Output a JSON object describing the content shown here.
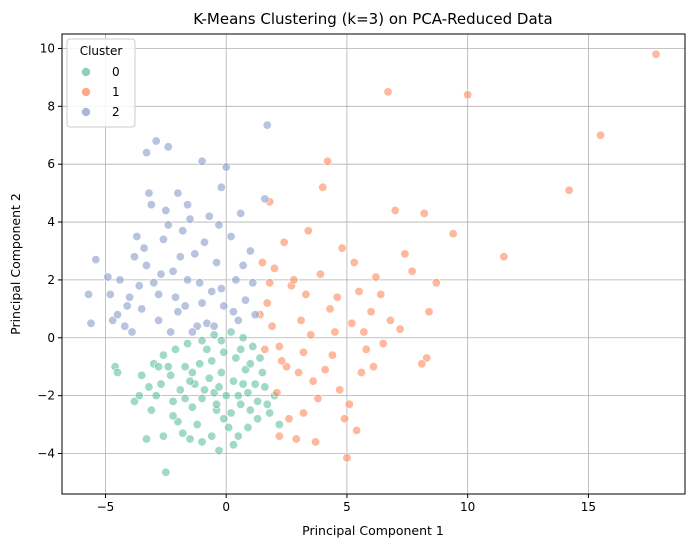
{
  "chart_data": {
    "type": "scatter",
    "title": "K-Means Clustering (k=3) on PCA-Reduced Data",
    "xlabel": "Principal Component 1",
    "ylabel": "Principal Component 2",
    "xlim": [
      -6.8,
      19.0
    ],
    "ylim": [
      -5.4,
      10.5
    ],
    "xticks": [
      -5,
      0,
      5,
      10,
      15
    ],
    "yticks": [
      -4,
      -2,
      0,
      2,
      4,
      6,
      8,
      10
    ],
    "grid": true,
    "legend": {
      "title": "Cluster",
      "placement": "top-left"
    },
    "series": [
      {
        "name": "0",
        "color": "#66c2a5",
        "points": [
          [
            -4.6,
            -1.0
          ],
          [
            -4.5,
            -1.2
          ],
          [
            -3.8,
            -2.2
          ],
          [
            -3.3,
            -3.5
          ],
          [
            -2.5,
            -4.65
          ],
          [
            -2.9,
            -2.0
          ],
          [
            -2.6,
            -3.4
          ],
          [
            -2.0,
            -2.9
          ],
          [
            -1.8,
            -3.3
          ],
          [
            -1.5,
            -3.5
          ],
          [
            -1.0,
            -3.6
          ],
          [
            -0.6,
            -3.4
          ],
          [
            -0.3,
            -3.9
          ],
          [
            0.3,
            -3.7
          ],
          [
            0.5,
            -3.4
          ],
          [
            0.9,
            -3.1
          ],
          [
            1.3,
            -2.8
          ],
          [
            1.7,
            -2.3
          ],
          [
            2.0,
            -2.0
          ],
          [
            2.2,
            -3.0
          ],
          [
            1.8,
            -2.6
          ],
          [
            0.6,
            -2.3
          ],
          [
            -0.4,
            -2.5
          ],
          [
            -1.4,
            -2.4
          ],
          [
            -2.2,
            -2.2
          ],
          [
            -3.2,
            -1.7
          ],
          [
            -3.5,
            -1.3
          ],
          [
            -3.0,
            -0.9
          ],
          [
            -2.6,
            -0.6
          ],
          [
            -2.1,
            -0.4
          ],
          [
            -1.6,
            -0.2
          ],
          [
            -1.0,
            -0.1
          ],
          [
            -0.5,
            0.1
          ],
          [
            0.2,
            0.2
          ],
          [
            0.7,
            0.0
          ],
          [
            1.1,
            -0.3
          ],
          [
            1.4,
            -0.7
          ],
          [
            1.5,
            -1.2
          ],
          [
            1.2,
            -1.6
          ],
          [
            0.8,
            -1.1
          ],
          [
            0.4,
            -0.7
          ],
          [
            -0.1,
            -0.5
          ],
          [
            -0.6,
            -0.8
          ],
          [
            -1.1,
            -0.9
          ],
          [
            -1.7,
            -1.0
          ],
          [
            -2.3,
            -1.3
          ],
          [
            -2.7,
            -1.6
          ],
          [
            -1.9,
            -1.8
          ],
          [
            -1.3,
            -1.6
          ],
          [
            -0.7,
            -1.4
          ],
          [
            -0.2,
            -1.2
          ],
          [
            0.3,
            -1.5
          ],
          [
            0.9,
            -1.9
          ],
          [
            0.5,
            -2.0
          ],
          [
            0.0,
            -2.0
          ],
          [
            -0.5,
            -1.9
          ],
          [
            -1.0,
            -2.1
          ],
          [
            -1.5,
            -1.5
          ],
          [
            -0.8,
            -0.4
          ],
          [
            -0.2,
            -0.1
          ],
          [
            0.6,
            -0.4
          ],
          [
            1.0,
            -0.9
          ],
          [
            -2.8,
            -1.0
          ],
          [
            -3.1,
            -2.5
          ],
          [
            -2.2,
            -2.7
          ],
          [
            -1.2,
            -3.0
          ],
          [
            -0.1,
            -2.8
          ],
          [
            1.0,
            -2.5
          ],
          [
            1.6,
            -1.7
          ],
          [
            0.1,
            -3.1
          ],
          [
            -1.7,
            -2.1
          ],
          [
            -3.6,
            -2.0
          ],
          [
            -2.4,
            -1.0
          ],
          [
            -0.3,
            -1.7
          ],
          [
            0.7,
            -1.6
          ],
          [
            -1.4,
            -1.2
          ],
          [
            -0.9,
            -1.8
          ],
          [
            -0.4,
            -2.3
          ],
          [
            0.2,
            -2.6
          ],
          [
            1.3,
            -2.2
          ]
        ]
      },
      {
        "name": "1",
        "color": "#fc8d62",
        "points": [
          [
            17.8,
            9.8
          ],
          [
            15.5,
            7.0
          ],
          [
            14.2,
            5.1
          ],
          [
            11.5,
            2.8
          ],
          [
            10.0,
            8.4
          ],
          [
            9.4,
            3.6
          ],
          [
            8.7,
            1.9
          ],
          [
            8.4,
            0.9
          ],
          [
            8.2,
            4.3
          ],
          [
            8.3,
            -0.7
          ],
          [
            8.1,
            -0.9
          ],
          [
            7.7,
            2.3
          ],
          [
            7.4,
            2.9
          ],
          [
            7.2,
            0.3
          ],
          [
            7.0,
            4.4
          ],
          [
            6.7,
            8.5
          ],
          [
            6.4,
            1.5
          ],
          [
            6.2,
            2.1
          ],
          [
            6.0,
            0.9
          ],
          [
            5.7,
            0.2
          ],
          [
            5.6,
            -1.2
          ],
          [
            5.4,
            -3.2
          ],
          [
            5.1,
            -2.3
          ],
          [
            5.0,
            -4.15
          ],
          [
            4.8,
            3.1
          ],
          [
            4.6,
            1.4
          ],
          [
            4.4,
            -0.6
          ],
          [
            4.2,
            6.1
          ],
          [
            4.0,
            5.2
          ],
          [
            3.9,
            2.2
          ],
          [
            3.6,
            -1.5
          ],
          [
            3.4,
            3.7
          ],
          [
            3.2,
            -2.6
          ],
          [
            3.1,
            0.6
          ],
          [
            2.9,
            -3.5
          ],
          [
            2.7,
            1.8
          ],
          [
            2.5,
            -1.0
          ],
          [
            2.4,
            3.3
          ],
          [
            2.2,
            -0.3
          ],
          [
            2.0,
            2.4
          ],
          [
            1.9,
            0.4
          ],
          [
            1.7,
            1.2
          ],
          [
            1.6,
            -0.4
          ],
          [
            1.5,
            2.6
          ],
          [
            1.4,
            0.8
          ],
          [
            2.1,
            -1.9
          ],
          [
            2.6,
            -2.8
          ],
          [
            3.0,
            -1.2
          ],
          [
            3.5,
            0.1
          ],
          [
            3.8,
            -2.1
          ],
          [
            4.1,
            -1.1
          ],
          [
            4.3,
            1.0
          ],
          [
            4.7,
            -1.8
          ],
          [
            5.2,
            0.5
          ],
          [
            5.5,
            1.6
          ],
          [
            5.8,
            -0.4
          ],
          [
            6.5,
            -0.2
          ],
          [
            6.8,
            0.6
          ],
          [
            3.3,
            1.5
          ],
          [
            2.8,
            2.0
          ],
          [
            2.3,
            -0.8
          ],
          [
            1.8,
            1.9
          ],
          [
            3.7,
            -3.6
          ],
          [
            4.9,
            -2.8
          ],
          [
            5.3,
            2.6
          ],
          [
            4.5,
            0.2
          ],
          [
            2.2,
            -3.4
          ],
          [
            1.8,
            4.7
          ],
          [
            3.2,
            -0.5
          ],
          [
            6.1,
            -1.0
          ]
        ]
      },
      {
        "name": "2",
        "color": "#8da0cb",
        "points": [
          [
            -5.7,
            1.5
          ],
          [
            -5.6,
            0.5
          ],
          [
            -5.4,
            2.7
          ],
          [
            -4.9,
            2.1
          ],
          [
            -4.8,
            1.5
          ],
          [
            -4.7,
            0.6
          ],
          [
            -4.4,
            2.0
          ],
          [
            -4.2,
            0.4
          ],
          [
            -4.0,
            1.4
          ],
          [
            -3.8,
            2.8
          ],
          [
            -3.7,
            3.5
          ],
          [
            -3.5,
            1.0
          ],
          [
            -3.3,
            6.4
          ],
          [
            -3.2,
            5.0
          ],
          [
            -3.1,
            4.6
          ],
          [
            -3.0,
            1.9
          ],
          [
            -2.9,
            6.8
          ],
          [
            -2.8,
            0.6
          ],
          [
            -2.6,
            3.4
          ],
          [
            -2.5,
            4.4
          ],
          [
            -2.4,
            6.6
          ],
          [
            -2.2,
            2.3
          ],
          [
            -2.0,
            5.0
          ],
          [
            -1.8,
            3.7
          ],
          [
            -1.7,
            1.1
          ],
          [
            -1.5,
            4.1
          ],
          [
            -1.3,
            2.9
          ],
          [
            -1.2,
            0.4
          ],
          [
            -1.0,
            6.1
          ],
          [
            -0.9,
            3.3
          ],
          [
            -0.7,
            4.2
          ],
          [
            -0.6,
            1.6
          ],
          [
            -0.4,
            2.6
          ],
          [
            -0.2,
            5.2
          ],
          [
            0.0,
            5.9
          ],
          [
            0.2,
            3.5
          ],
          [
            0.4,
            2.0
          ],
          [
            0.6,
            4.3
          ],
          [
            0.8,
            1.3
          ],
          [
            1.0,
            3.0
          ],
          [
            1.2,
            0.8
          ],
          [
            1.6,
            4.8
          ],
          [
            1.7,
            7.35
          ],
          [
            0.5,
            0.6
          ],
          [
            -0.1,
            1.1
          ],
          [
            -0.8,
            0.5
          ],
          [
            -1.6,
            2.0
          ],
          [
            -2.1,
            1.4
          ],
          [
            -2.7,
            2.2
          ],
          [
            -3.3,
            2.5
          ],
          [
            -3.6,
            1.8
          ],
          [
            -4.1,
            1.1
          ],
          [
            -2.3,
            0.2
          ],
          [
            -1.4,
            0.2
          ],
          [
            -0.5,
            0.4
          ],
          [
            0.3,
            0.9
          ],
          [
            -1.1,
            1.9
          ],
          [
            -1.9,
            2.8
          ],
          [
            -2.4,
            3.9
          ],
          [
            -1.6,
            4.6
          ],
          [
            -0.3,
            3.9
          ],
          [
            0.7,
            2.5
          ],
          [
            -3.4,
            3.1
          ],
          [
            -4.5,
            0.8
          ],
          [
            -3.9,
            0.2
          ],
          [
            -1.0,
            1.2
          ],
          [
            -0.2,
            1.7
          ],
          [
            -2.0,
            0.9
          ],
          [
            -2.8,
            1.5
          ],
          [
            1.1,
            1.9
          ]
        ]
      }
    ]
  }
}
